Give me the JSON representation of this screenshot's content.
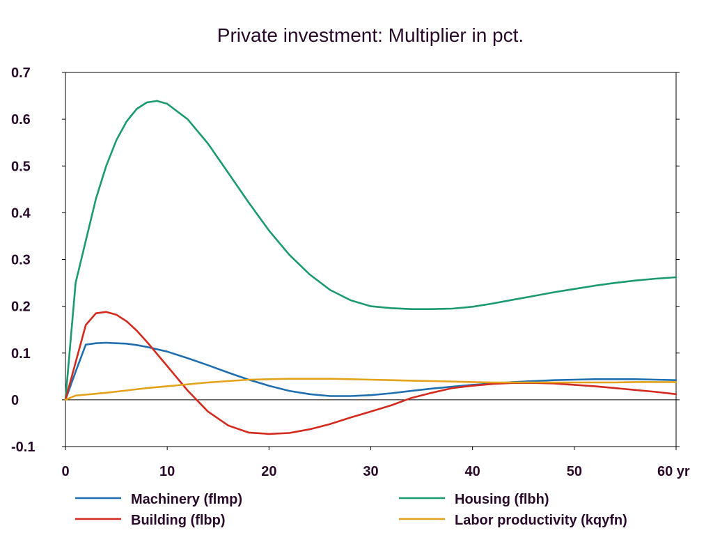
{
  "chart_data": {
    "type": "line",
    "title": "Private investment: Multiplier in pct.",
    "xlabel": "",
    "ylabel": "",
    "xlim": [
      0,
      60
    ],
    "ylim": [
      -0.1,
      0.7
    ],
    "x_ticks": [
      0,
      10,
      20,
      30,
      40,
      50,
      60
    ],
    "x_tick_labels": [
      "0",
      "10",
      "20",
      "30",
      "40",
      "50",
      "60 yr"
    ],
    "y_ticks": [
      -0.1,
      0,
      0.1,
      0.2,
      0.3,
      0.4,
      0.5,
      0.6,
      0.7
    ],
    "y_tick_labels": [
      "-0.1",
      "0",
      "0.1",
      "0.2",
      "0.3",
      "0.4",
      "0.5",
      "0.6",
      "0.7"
    ],
    "grid": false,
    "zero_line": true,
    "legend_position": "bottom",
    "series": [
      {
        "name": "Machinery (flmp)",
        "color": "#1f6fb0",
        "x": [
          0,
          1,
          2,
          3,
          4,
          5,
          6,
          7,
          8,
          10,
          12,
          14,
          16,
          18,
          20,
          22,
          24,
          26,
          28,
          30,
          32,
          34,
          36,
          38,
          40,
          42,
          44,
          46,
          48,
          50,
          52,
          54,
          56,
          58,
          60
        ],
        "y": [
          0,
          0.06,
          0.118,
          0.121,
          0.122,
          0.121,
          0.12,
          0.117,
          0.113,
          0.103,
          0.089,
          0.074,
          0.058,
          0.043,
          0.03,
          0.019,
          0.012,
          0.008,
          0.008,
          0.01,
          0.014,
          0.019,
          0.024,
          0.028,
          0.032,
          0.035,
          0.038,
          0.04,
          0.042,
          0.043,
          0.044,
          0.044,
          0.044,
          0.043,
          0.042
        ]
      },
      {
        "name": "Housing (flbh)",
        "color": "#1a9a6e",
        "x": [
          0,
          1,
          2,
          3,
          4,
          5,
          6,
          7,
          8,
          9,
          10,
          12,
          14,
          16,
          18,
          20,
          22,
          24,
          26,
          28,
          30,
          32,
          34,
          36,
          38,
          40,
          42,
          44,
          46,
          48,
          50,
          52,
          54,
          56,
          58,
          60
        ],
        "y": [
          0,
          0.25,
          0.34,
          0.43,
          0.5,
          0.555,
          0.595,
          0.622,
          0.636,
          0.639,
          0.633,
          0.6,
          0.548,
          0.485,
          0.422,
          0.362,
          0.31,
          0.268,
          0.235,
          0.213,
          0.2,
          0.196,
          0.194,
          0.194,
          0.195,
          0.199,
          0.206,
          0.214,
          0.222,
          0.23,
          0.237,
          0.244,
          0.25,
          0.255,
          0.259,
          0.262
        ]
      },
      {
        "name": "Building (flbp)",
        "color": "#d42a1e",
        "x": [
          0,
          1,
          2,
          3,
          4,
          5,
          6,
          7,
          8,
          10,
          12,
          14,
          16,
          18,
          20,
          22,
          24,
          26,
          28,
          30,
          32,
          34,
          36,
          38,
          40,
          42,
          44,
          46,
          48,
          50,
          52,
          54,
          56,
          58,
          60
        ],
        "y": [
          0,
          0.08,
          0.16,
          0.185,
          0.188,
          0.182,
          0.168,
          0.148,
          0.124,
          0.072,
          0.02,
          -0.025,
          -0.055,
          -0.07,
          -0.073,
          -0.071,
          -0.063,
          -0.052,
          -0.038,
          -0.025,
          -0.012,
          0.004,
          0.015,
          0.025,
          0.03,
          0.034,
          0.036,
          0.036,
          0.035,
          0.032,
          0.029,
          0.025,
          0.021,
          0.017,
          0.012
        ]
      },
      {
        "name": "Labor productivity (kqyfn)",
        "color": "#e3a21a",
        "x": [
          0,
          1,
          2,
          4,
          6,
          8,
          10,
          12,
          14,
          16,
          18,
          20,
          22,
          24,
          26,
          28,
          30,
          32,
          34,
          36,
          38,
          40,
          42,
          44,
          46,
          48,
          50,
          52,
          54,
          56,
          58,
          60
        ],
        "y": [
          0,
          0.009,
          0.011,
          0.015,
          0.02,
          0.025,
          0.029,
          0.033,
          0.037,
          0.04,
          0.043,
          0.044,
          0.045,
          0.045,
          0.045,
          0.044,
          0.043,
          0.042,
          0.041,
          0.04,
          0.039,
          0.038,
          0.037,
          0.037,
          0.037,
          0.037,
          0.037,
          0.037,
          0.037,
          0.038,
          0.038,
          0.038
        ]
      }
    ]
  }
}
